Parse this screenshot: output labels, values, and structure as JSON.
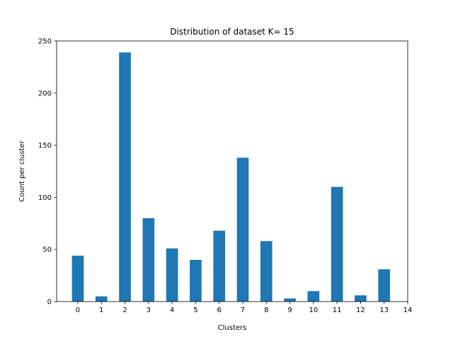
{
  "chart_data": {
    "type": "bar",
    "title": "Distribution of dataset K= 15",
    "xlabel": "Clusters",
    "ylabel": "Count per cluster",
    "categories": [
      0,
      1,
      2,
      3,
      4,
      5,
      6,
      7,
      8,
      9,
      10,
      11,
      12,
      13
    ],
    "values": [
      44,
      5,
      239,
      80,
      51,
      40,
      68,
      138,
      58,
      3,
      10,
      110,
      6,
      31
    ],
    "xticks": [
      0,
      1,
      2,
      3,
      4,
      5,
      6,
      7,
      8,
      9,
      10,
      11,
      12,
      13,
      14
    ],
    "yticks": [
      0,
      50,
      100,
      150,
      200,
      250
    ],
    "xlim": [
      -0.9,
      14
    ],
    "ylim": [
      0,
      250
    ],
    "bar_color": "#1f77b4",
    "grid": false,
    "legend": "none"
  }
}
